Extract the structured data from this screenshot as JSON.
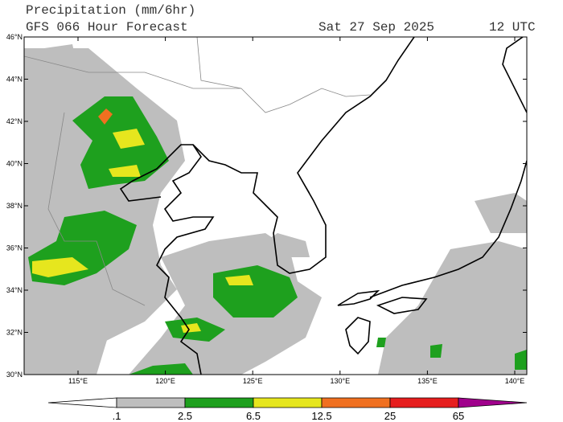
{
  "header": {
    "title": "Precipitation (mm/6hr)",
    "subtitle": "GFS 066 Hour Forecast",
    "date": "Sat 27 Sep 2025",
    "time": "12 UTC"
  },
  "map": {
    "lat_labels": [
      "30°N",
      "32°N",
      "34°N",
      "36°N",
      "38°N",
      "40°N",
      "42°N",
      "44°N",
      "46°N"
    ],
    "lon_labels": [
      "115°E",
      "120°E",
      "125°E",
      "130°E",
      "135°E",
      "140°E"
    ]
  },
  "colorbar": {
    "labels": [
      ".1",
      "2.5",
      "6.5",
      "12.5",
      "25",
      "65"
    ],
    "colors": [
      "#ffffff",
      "#bebebe",
      "#1ea01e",
      "#e6e61e",
      "#f07020",
      "#e61e1e",
      "#a0008c"
    ]
  }
}
